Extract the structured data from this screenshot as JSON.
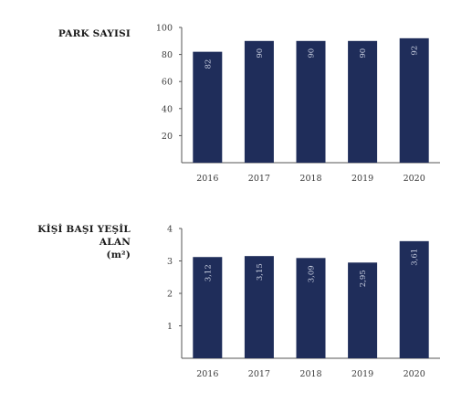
{
  "colors": {
    "bar": "#1f2d5a",
    "axis": "#555555",
    "label": "#c9cfe0"
  },
  "chart_data": [
    {
      "type": "bar",
      "title": "PARK SAYISI",
      "title_unit": "",
      "categories": [
        "2016",
        "2017",
        "2018",
        "2019",
        "2020"
      ],
      "values": [
        82,
        90,
        90,
        90,
        92
      ],
      "data_labels": [
        "82",
        "90",
        "90",
        "90",
        "92"
      ],
      "yticks": [
        "20",
        "40",
        "60",
        "80",
        "100"
      ],
      "ytick_values": [
        20,
        40,
        60,
        80,
        100
      ],
      "ylim": [
        0,
        100
      ],
      "grid": false
    },
    {
      "type": "bar",
      "title": "KİŞİ BAŞI YEŞİL ALAN",
      "title_unit": "(m²)",
      "categories": [
        "2016",
        "2017",
        "2018",
        "2019",
        "2020"
      ],
      "values": [
        3.12,
        3.15,
        3.09,
        2.95,
        3.61
      ],
      "data_labels": [
        "3,12",
        "3,15",
        "3,09",
        "2,95",
        "3,61"
      ],
      "yticks": [
        "1",
        "2",
        "3",
        "4"
      ],
      "ytick_values": [
        1,
        2,
        3,
        4
      ],
      "ylim": [
        0,
        4
      ],
      "grid": false
    }
  ]
}
